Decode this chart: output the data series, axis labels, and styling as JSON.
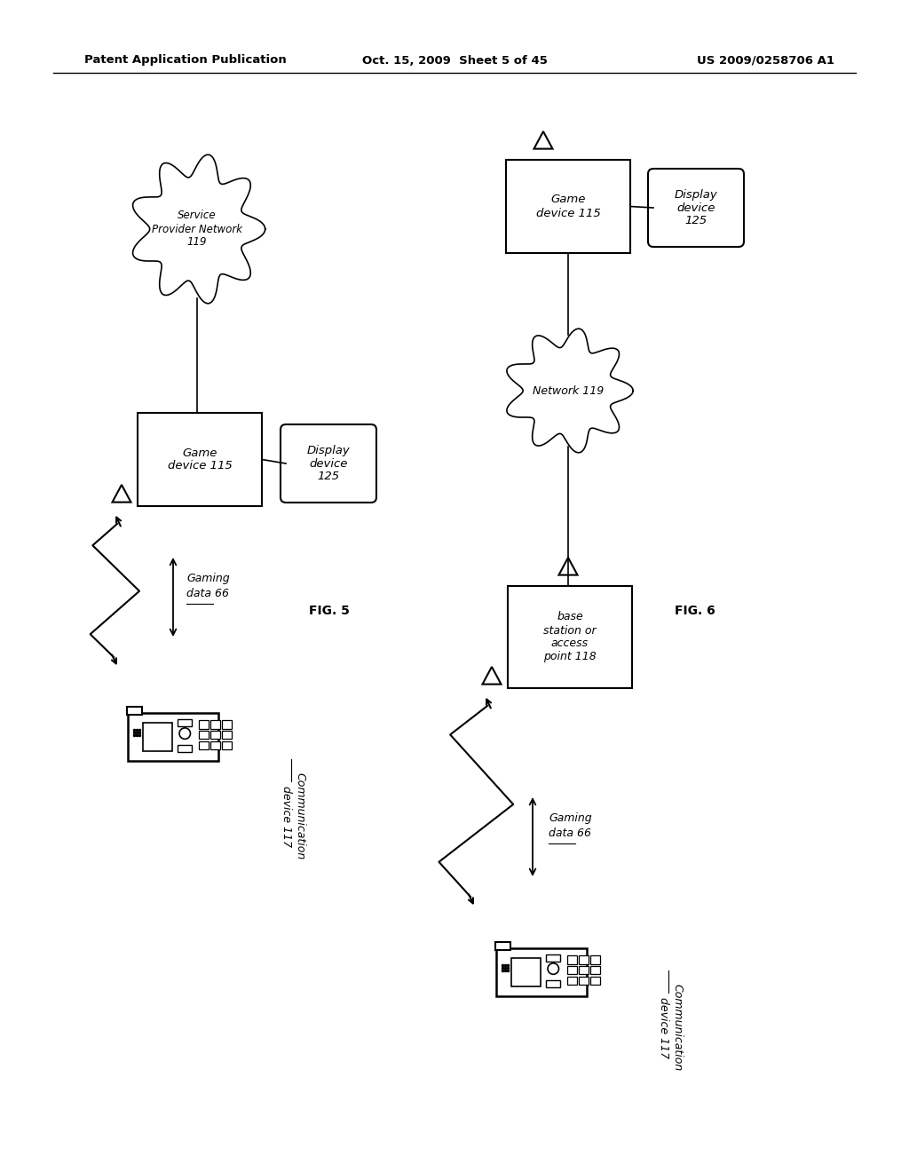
{
  "bg_color": "#ffffff",
  "header_left": "Patent Application Publication",
  "header_center": "Oct. 15, 2009  Sheet 5 of 45",
  "header_right": "US 2009/0258706 A1",
  "fig5_label": "FIG. 5",
  "fig6_label": "FIG. 6"
}
